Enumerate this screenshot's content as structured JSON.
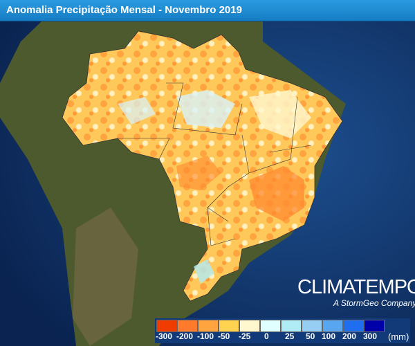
{
  "title": "Anomalia Precipitação Mensal - Novembro 2019",
  "logo": {
    "name": "CLIMATEMPO",
    "tagline": "A StormGeo Company"
  },
  "legend": {
    "unit": "(mm)",
    "items": [
      {
        "label": "-300",
        "color": "#f03c00"
      },
      {
        "label": "-200",
        "color": "#ff7a2a"
      },
      {
        "label": "-100",
        "color": "#ffa43f"
      },
      {
        "label": "-50",
        "color": "#ffd24f"
      },
      {
        "label": "-25",
        "color": "#fff8cf"
      },
      {
        "label": "0",
        "color": "#e0ffff"
      },
      {
        "label": "25",
        "color": "#b0ecf5"
      },
      {
        "label": "50",
        "color": "#96cdf3"
      },
      {
        "label": "100",
        "color": "#58a6ef"
      },
      {
        "label": "200",
        "color": "#1f6ef0"
      },
      {
        "label": "300",
        "color": "#0000a8"
      }
    ]
  }
}
